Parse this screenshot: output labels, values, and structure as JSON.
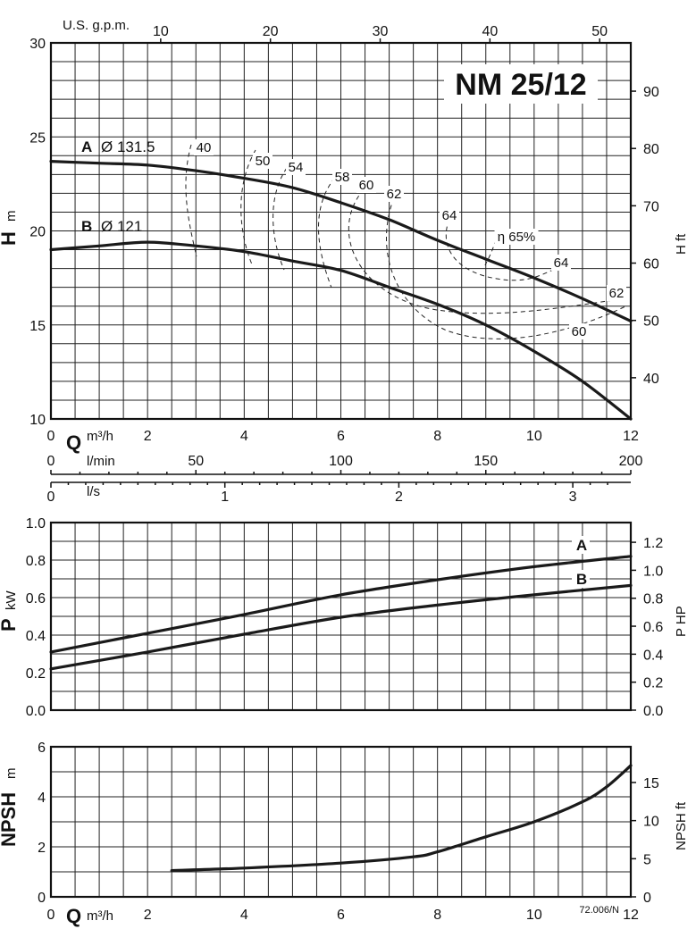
{
  "title": "NM 25/12",
  "code": "72.006/N",
  "axes": {
    "q_label": "Q",
    "q_unit": "m³/h",
    "gpm_label": "U.S. g.p.m.",
    "lmin_label": "l/min",
    "ls_label": "l/s",
    "h_label": "H",
    "h_unit": "m",
    "hft_label": "H ft",
    "p_label": "P",
    "p_unit": "kW",
    "php_label": "P HP",
    "npsh_label": "NPSH",
    "npsh_unit": "m",
    "npshft_label": "NPSH ft"
  },
  "chart_data": [
    {
      "type": "line",
      "name": "head",
      "xlim": [
        0,
        12
      ],
      "ylim": [
        10,
        30
      ],
      "x_ticks": [
        0,
        2,
        4,
        6,
        8,
        10,
        12
      ],
      "y_ticks": [
        10,
        15,
        20,
        25,
        30
      ],
      "right_ticks_ft": [
        40,
        50,
        60,
        70,
        80,
        90
      ],
      "top_ticks_gpm": [
        10,
        20,
        30,
        40,
        50
      ],
      "lmin_ticks": [
        0,
        50,
        100,
        150,
        200
      ],
      "ls_ticks": [
        0,
        1,
        2,
        3
      ],
      "series": [
        {
          "name": "A",
          "label": "Ø 131.5",
          "x": [
            0,
            1,
            2,
            3,
            4,
            5,
            6,
            7,
            8,
            9,
            10,
            11,
            12
          ],
          "y": [
            23.7,
            23.6,
            23.5,
            23.2,
            22.8,
            22.3,
            21.5,
            20.6,
            19.5,
            18.5,
            17.5,
            16.4,
            15.2
          ]
        },
        {
          "name": "B",
          "label": "Ø 121",
          "x": [
            0,
            1,
            2,
            3,
            4,
            5,
            6,
            7,
            8,
            9,
            10,
            11,
            12
          ],
          "y": [
            19.0,
            19.2,
            19.4,
            19.2,
            18.9,
            18.4,
            17.9,
            17.0,
            16.1,
            15.0,
            13.6,
            12.0,
            10.0
          ]
        }
      ],
      "efficiency_labels": [
        "40",
        "50",
        "54",
        "58",
        "60",
        "62",
        "64",
        "η 65%",
        "64",
        "62",
        "60"
      ]
    },
    {
      "type": "line",
      "name": "power",
      "xlim": [
        0,
        12
      ],
      "ylim": [
        0,
        1.0
      ],
      "y_ticks": [
        0,
        0.2,
        0.4,
        0.6,
        0.8,
        1.0
      ],
      "right_ticks_hp": [
        0,
        0.2,
        0.4,
        0.6,
        0.8,
        1.0,
        1.2
      ],
      "series": [
        {
          "name": "A",
          "x": [
            0,
            2,
            4,
            6,
            8,
            10,
            12
          ],
          "y": [
            0.31,
            0.41,
            0.51,
            0.615,
            0.695,
            0.765,
            0.82
          ]
        },
        {
          "name": "B",
          "x": [
            0,
            2,
            4,
            6,
            8,
            10,
            12
          ],
          "y": [
            0.22,
            0.31,
            0.405,
            0.495,
            0.56,
            0.615,
            0.665
          ]
        }
      ]
    },
    {
      "type": "line",
      "name": "npsh",
      "xlim": [
        0,
        12
      ],
      "ylim": [
        0,
        6
      ],
      "x_ticks": [
        0,
        2,
        4,
        6,
        8,
        10,
        12
      ],
      "y_ticks": [
        0,
        2,
        4,
        6
      ],
      "right_ticks_ft": [
        0,
        5,
        10,
        15
      ],
      "series": [
        {
          "x": [
            2.5,
            4,
            6,
            7.5,
            8,
            9,
            10,
            11,
            11.5,
            12
          ],
          "y": [
            1.05,
            1.15,
            1.35,
            1.6,
            1.8,
            2.4,
            3.0,
            3.8,
            4.4,
            5.25
          ]
        }
      ]
    }
  ]
}
